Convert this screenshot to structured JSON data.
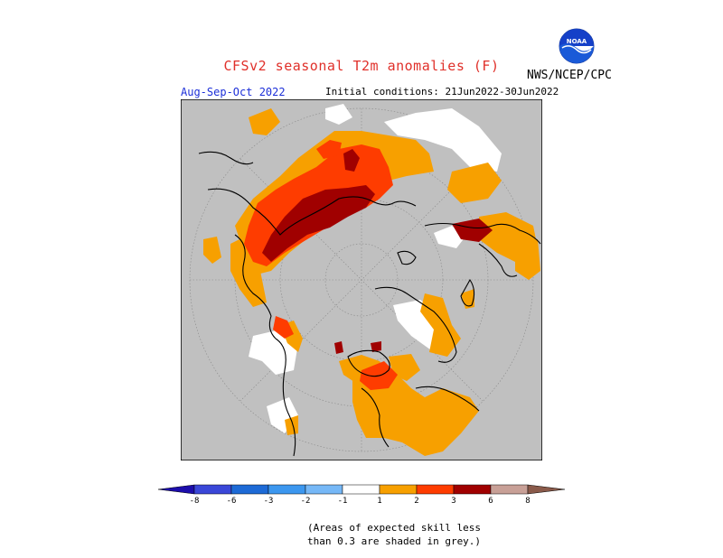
{
  "title": "CFSv2 seasonal T2m anomalies (F)",
  "period": "Aug-Sep-Oct 2022",
  "initial_conditions": "Initial conditions: 21Jun2022-30Jun2022",
  "agency": "NWS/NCEP/CPC",
  "logo_text": "NOAA",
  "colors": {
    "skill_grey": "#c0c0c0",
    "white_neutral": "#ffffff",
    "orange_1_2": "#f7a000",
    "orangered_2_3": "#fe3c00",
    "darkred_3_6": "#a00000",
    "title_red": "#e0302a",
    "period_blue": "#1c2fd8"
  },
  "colorbar": {
    "labels": [
      "-8",
      "-6",
      "-3",
      "-2",
      "-1",
      "1",
      "2",
      "3",
      "6",
      "8"
    ],
    "colors": [
      "#1c0dab",
      "#3a47d8",
      "#1d6ad6",
      "#3c97ef",
      "#76b8f7",
      "#ffffff",
      "#f7a000",
      "#fe3c00",
      "#a00000",
      "#c8a097",
      "#8a5a4a"
    ]
  },
  "footnote_line1": "(Areas of expected skill less",
  "footnote_line2": "than 0.3 are shaded in grey.)"
}
